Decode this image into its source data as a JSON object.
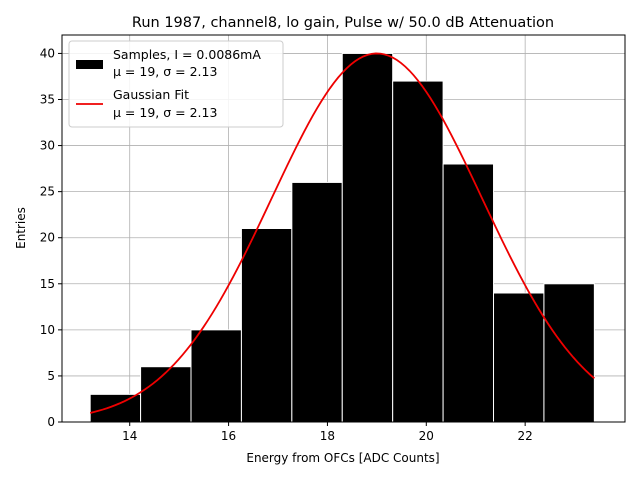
{
  "chart_data": {
    "type": "bar",
    "title": "Run 1987, channel8, lo gain, Pulse w/ 50.0 dB Attenuation",
    "xlabel": "Energy from OFCs [ADC Counts]",
    "ylabel": "Entries",
    "xlim": [
      12.63,
      24.02
    ],
    "ylim": [
      0,
      42
    ],
    "grid": true,
    "xticks": [
      14,
      16,
      18,
      20,
      22
    ],
    "yticks": [
      0,
      5,
      10,
      15,
      20,
      25,
      30,
      35,
      40
    ],
    "bin_edges": [
      13.2,
      14.22,
      15.24,
      16.26,
      17.28,
      18.3,
      19.32,
      20.34,
      21.36,
      22.38,
      23.4
    ],
    "values": [
      3,
      6,
      10,
      21,
      26,
      40,
      37,
      28,
      14,
      15
    ],
    "colors": {
      "bars": "#000000",
      "bar_edge": "#ffffff",
      "fit": "#ee0000",
      "grid": "#b0b0b0"
    },
    "fit": {
      "type": "gaussian",
      "amplitude": 40,
      "mu": 19,
      "sigma": 2.13,
      "x_range": [
        13.2,
        23.4
      ]
    },
    "legend": {
      "placement": "top-left",
      "entries": [
        {
          "label": "Samples, I = 0.0086mA",
          "sublabel": "μ = 19, σ = 2.13"
        },
        {
          "label": "Gaussian Fit",
          "sublabel": "μ = 19, σ = 2.13"
        }
      ]
    }
  }
}
